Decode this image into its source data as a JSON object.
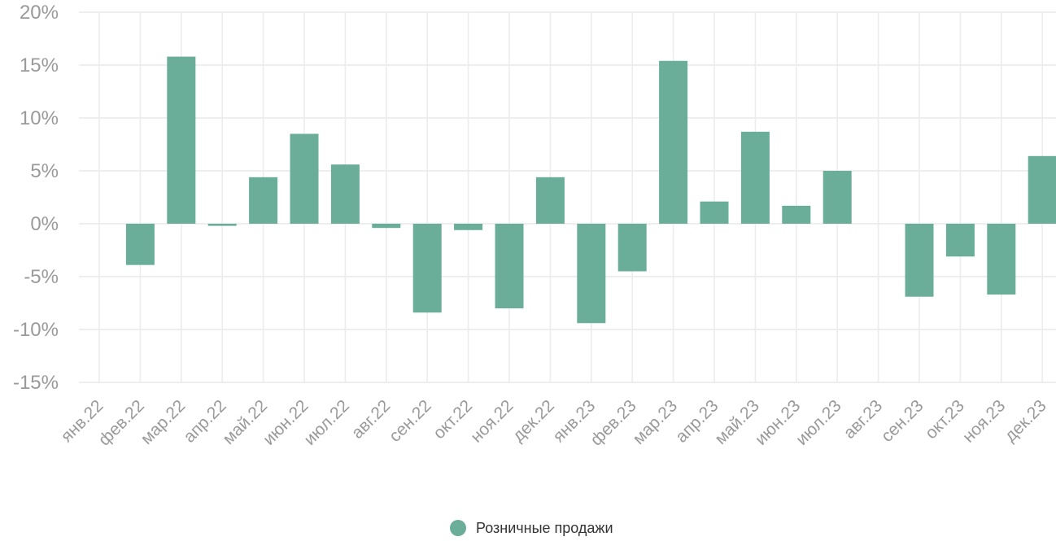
{
  "chart_data": {
    "type": "bar",
    "categories": [
      "янв.22",
      "фев.22",
      "мар.22",
      "апр.22",
      "май.22",
      "июн.22",
      "июл.22",
      "авг.22",
      "сен.22",
      "окт.22",
      "ноя.22",
      "дек.22",
      "янв.23",
      "фев.23",
      "мар.23",
      "апр.23",
      "май.23",
      "июн.23",
      "июл.23",
      "авг.23",
      "сен.23",
      "окт.23",
      "ноя.23",
      "дек.23"
    ],
    "series": [
      {
        "name": "Розничные продажи",
        "color": "#6aae9a",
        "values": [
          0,
          -3.9,
          15.8,
          -0.2,
          4.4,
          8.5,
          5.6,
          -0.4,
          -8.4,
          -0.6,
          -8.0,
          4.4,
          -9.4,
          -4.5,
          15.4,
          2.1,
          8.7,
          1.7,
          5.0,
          0,
          -6.9,
          -3.1,
          -6.7,
          6.4
        ]
      }
    ],
    "yticks": [
      "20%",
      "15%",
      "10%",
      "5%",
      "0%",
      "-5%",
      "-10%",
      "-15%"
    ],
    "ylim": [
      -15,
      20
    ],
    "title": "",
    "xlabel": "",
    "ylabel": "",
    "grid": true,
    "legend_position": "bottom-center"
  }
}
